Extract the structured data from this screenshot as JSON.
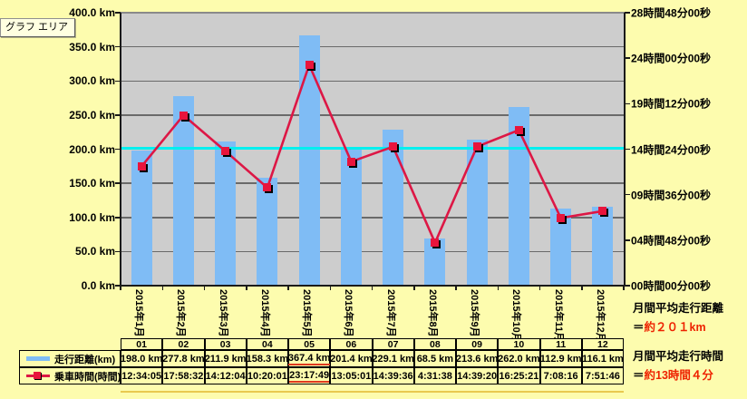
{
  "tooltip": "グラフ エリア",
  "chart_data": {
    "type": "bar",
    "title": "",
    "categories": [
      "2015年1月",
      "2015年2月",
      "2015年3月",
      "2015年4月",
      "2015年5月",
      "2015年6月",
      "2015年7月",
      "2015年8月",
      "2015年9月",
      "2015年10月",
      "2015年11月",
      "2015年12月"
    ],
    "series": [
      {
        "name": "走行距離(km)",
        "render": "bar",
        "axis": "left",
        "unit": "km",
        "values": [
          198.0,
          277.8,
          211.9,
          158.3,
          367.4,
          201.4,
          229.1,
          68.5,
          213.6,
          262.0,
          112.9,
          116.1
        ]
      },
      {
        "name": "乗車時間(時間)",
        "render": "line",
        "axis": "right",
        "unit": "h:mm:ss",
        "values": [
          "12:34:05",
          "17:58:32",
          "14:12:04",
          "10:20:01",
          "23:17:49",
          "13:05:01",
          "14:39:36",
          "4:31:38",
          "14:39:20",
          "16:25:21",
          "7:08:16",
          "7:51:46"
        ]
      }
    ],
    "y_axis_left": {
      "min": 0,
      "max": 400,
      "tick_step": 50,
      "tick_labels": [
        "400.0 km",
        "350.0 km",
        "300.0 km",
        "250.0 km",
        "200.0 km",
        "150.0 km",
        "100.0 km",
        "50.0 km",
        "0.0 km"
      ]
    },
    "y_axis_right": {
      "max_hours": 28.8,
      "tick_labels": [
        "28時間48分00秒",
        "24時間00分00秒",
        "19時間12分00秒",
        "14時間24分00秒",
        "09時間36分00秒",
        "04時間48分00秒",
        "00時間00分00秒"
      ]
    },
    "average_distance_line": {
      "value_km": 201
    },
    "grid": true,
    "legend_position": "table-left"
  },
  "table": {
    "header_months": [
      "01",
      "02",
      "03",
      "04",
      "05",
      "06",
      "07",
      "08",
      "09",
      "10",
      "11",
      "12"
    ],
    "rows": [
      {
        "label": "走行距離(km)",
        "icon": "bar-swatch",
        "values": [
          "198.0 km",
          "277.8 km",
          "211.9 km",
          "158.3 km",
          "367.4 km",
          "201.4 km",
          "229.1 km",
          "68.5 km",
          "213.6 km",
          "262.0 km",
          "112.9 km",
          "116.1 km"
        ]
      },
      {
        "label": "乗車時間(時間)",
        "icon": "line-marker-swatch",
        "values": [
          "12:34:05",
          "17:58:32",
          "14:12:04",
          "10:20:01",
          "23:17:49",
          "13:05:01",
          "14:39:36",
          "4:31:38",
          "14:39:20",
          "16:25:21",
          "7:08:16",
          "7:51:46"
        ]
      }
    ],
    "max_highlight_month": "05"
  },
  "annotations": {
    "avg_distance": {
      "title": "月間平均走行距離",
      "prefix": "＝",
      "value": "約２０１km"
    },
    "avg_time": {
      "title": "月間平均走行時間",
      "prefix": "＝",
      "value": "約13時間４分"
    }
  },
  "colors": {
    "bar": "#7fbcf5",
    "line": "#dd1745",
    "marker": "#e8143c",
    "average_line": "#00efef",
    "plot_bg": "#cdcdcd",
    "page_bg": "#fdfcae",
    "grid": "#6a6a6a",
    "annotation_red": "#ee2200",
    "table_highlight_line": "#e9c94f",
    "underline_red": "#e03a1e"
  }
}
